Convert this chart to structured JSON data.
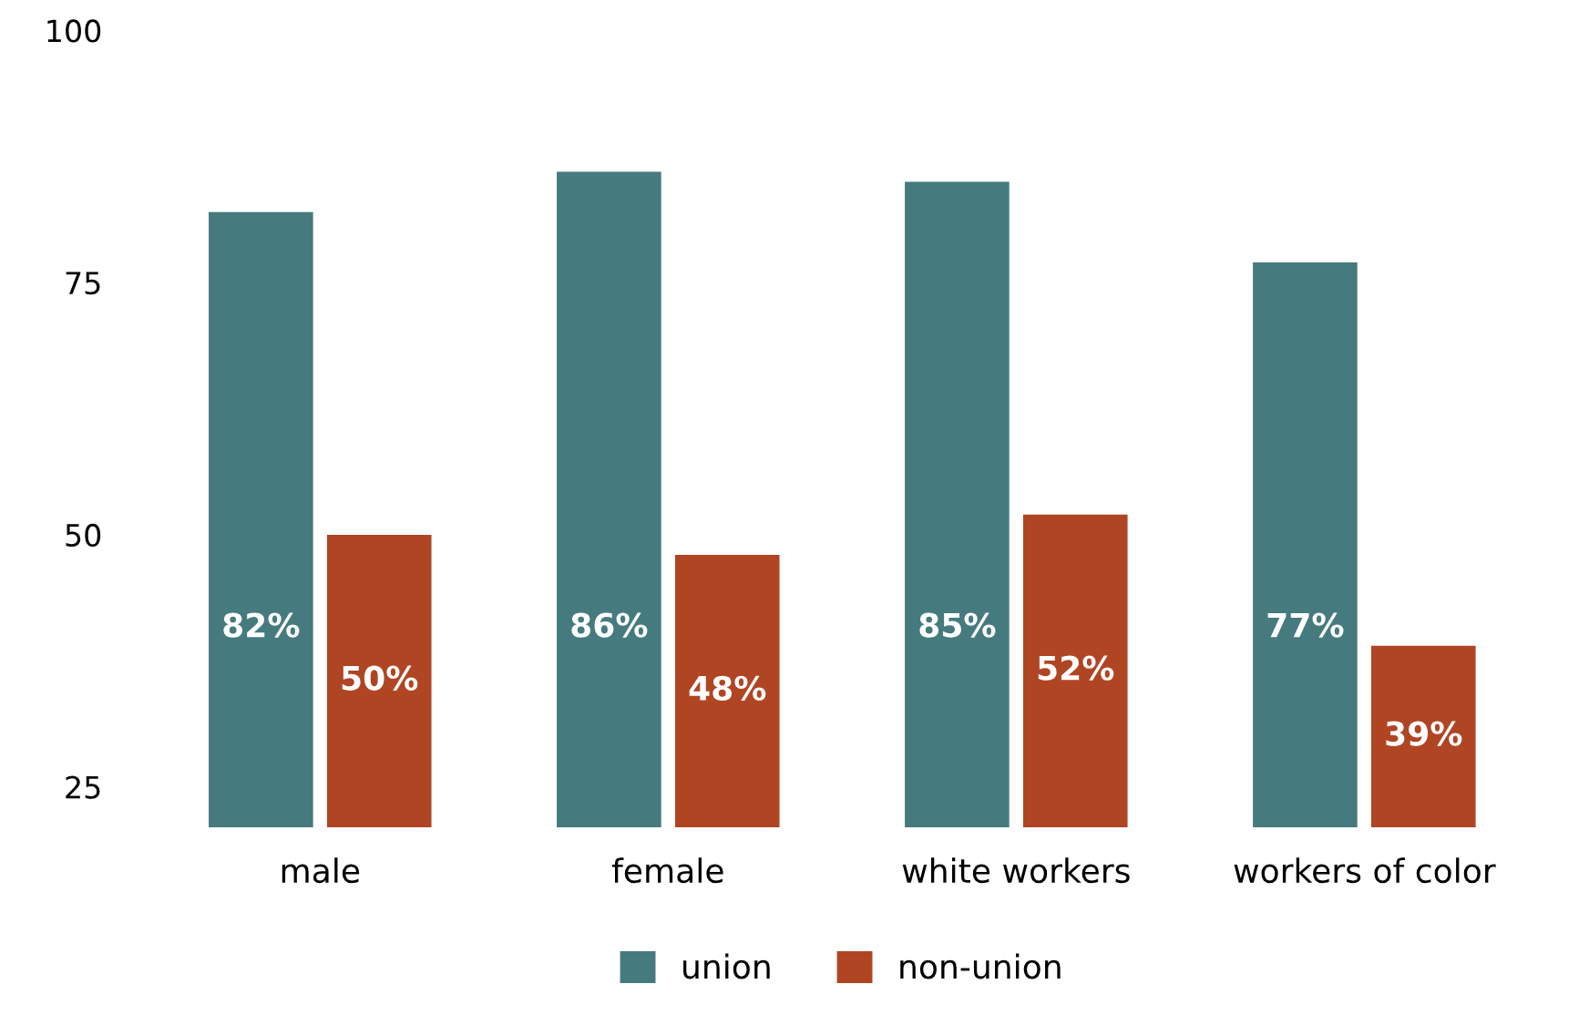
{
  "chart_data": {
    "type": "bar",
    "categories": [
      "male",
      "female",
      "white workers",
      "workers of color"
    ],
    "series": [
      {
        "name": "union",
        "color": "#457b7e",
        "values": [
          82,
          86,
          85,
          77
        ],
        "value_labels": [
          "82%",
          "86%",
          "85%",
          "77%"
        ]
      },
      {
        "name": "non-union",
        "color": "#b04524",
        "values": [
          50,
          48,
          52,
          39
        ],
        "value_labels": [
          "50%",
          "48%",
          "52%",
          "39%"
        ]
      }
    ],
    "ylim": [
      21,
      100
    ],
    "yticks": [
      25,
      50,
      75,
      100
    ],
    "grid": false,
    "legend": "bottom"
  }
}
